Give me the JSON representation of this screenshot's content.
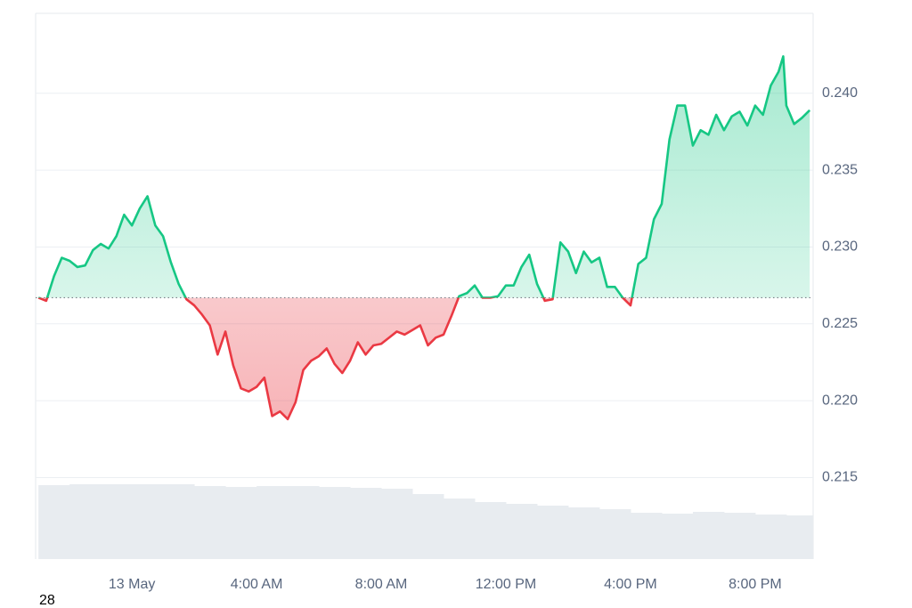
{
  "chart_data": {
    "type": "price-line",
    "footer_text": "28",
    "reference_value": 0.2267,
    "up_color": "#16c784",
    "down_color": "#ea3943",
    "volume_color": "#e8ecf0",
    "grid": true,
    "xlim": [
      -3.09,
      21.86
    ],
    "ylim": [
      0.2097,
      0.2452
    ],
    "xticks": [
      {
        "value": 0,
        "label": "13 May"
      },
      {
        "value": 4,
        "label": "4:00 AM"
      },
      {
        "value": 8,
        "label": "8:00 AM"
      },
      {
        "value": 12,
        "label": "12:00 PM"
      },
      {
        "value": 16,
        "label": "4:00 PM"
      },
      {
        "value": 20,
        "label": "8:00 PM"
      }
    ],
    "yticks": [
      {
        "value": 0.215,
        "label": "0.215"
      },
      {
        "value": 0.22,
        "label": "0.220"
      },
      {
        "value": 0.225,
        "label": "0.225"
      },
      {
        "value": 0.23,
        "label": "0.230"
      },
      {
        "value": 0.235,
        "label": "0.235"
      },
      {
        "value": 0.24,
        "label": "0.240"
      }
    ],
    "x": [
      -3,
      -2.75,
      -2.5,
      -2.25,
      -2,
      -1.75,
      -1.5,
      -1.25,
      -1,
      -0.75,
      -0.5,
      -0.25,
      0,
      0.25,
      0.5,
      0.75,
      1,
      1.25,
      1.5,
      1.75,
      2,
      2.25,
      2.5,
      2.75,
      3,
      3.25,
      3.5,
      3.75,
      4,
      4.25,
      4.5,
      4.75,
      5,
      5.25,
      5.5,
      5.75,
      6,
      6.25,
      6.5,
      6.75,
      7,
      7.25,
      7.5,
      7.75,
      8,
      8.25,
      8.5,
      8.75,
      9,
      9.25,
      9.5,
      9.75,
      10,
      10.25,
      10.5,
      10.75,
      11,
      11.25,
      11.5,
      11.75,
      12,
      12.25,
      12.5,
      12.75,
      13,
      13.25,
      13.5,
      13.75,
      14,
      14.25,
      14.5,
      14.75,
      15,
      15.25,
      15.5,
      15.75,
      16,
      16.25,
      16.5,
      16.75,
      17,
      17.25,
      17.5,
      17.75,
      18,
      18.25,
      18.5,
      18.75,
      19,
      19.25,
      19.5,
      19.75,
      20,
      20.25,
      20.5,
      20.75,
      20.9,
      21,
      21.25,
      21.5,
      21.75
    ],
    "values": [
      0.2267,
      0.2265,
      0.2281,
      0.2293,
      0.2291,
      0.2287,
      0.2288,
      0.2298,
      0.2302,
      0.2299,
      0.2307,
      0.2321,
      0.2314,
      0.2325,
      0.2333,
      0.2314,
      0.2307,
      0.229,
      0.2276,
      0.2266,
      0.2262,
      0.2256,
      0.2249,
      0.223,
      0.2245,
      0.2223,
      0.2208,
      0.2206,
      0.2209,
      0.2215,
      0.219,
      0.2193,
      0.2188,
      0.2199,
      0.222,
      0.2226,
      0.2229,
      0.2234,
      0.2224,
      0.2218,
      0.2226,
      0.2238,
      0.223,
      0.2236,
      0.2237,
      0.2241,
      0.2245,
      0.2243,
      0.2246,
      0.2249,
      0.2236,
      0.2241,
      0.2243,
      0.2255,
      0.2268,
      0.227,
      0.2275,
      0.2267,
      0.2267,
      0.2268,
      0.2275,
      0.2275,
      0.2287,
      0.2295,
      0.2276,
      0.2265,
      0.2266,
      0.2303,
      0.2297,
      0.2283,
      0.2297,
      0.229,
      0.2293,
      0.2274,
      0.2274,
      0.2267,
      0.2262,
      0.2289,
      0.2293,
      0.2318,
      0.2328,
      0.237,
      0.2392,
      0.2392,
      0.2366,
      0.2376,
      0.2373,
      0.2386,
      0.2376,
      0.2385,
      0.2388,
      0.2379,
      0.2392,
      0.2386,
      0.2405,
      0.2414,
      0.2424,
      0.2392,
      0.238,
      0.2384,
      0.2389
    ],
    "volume": {
      "lim": [
        0,
        100
      ],
      "x": [
        -3,
        -2,
        -1,
        0,
        1,
        2,
        3,
        4,
        5,
        6,
        7,
        8,
        9,
        10,
        11,
        12,
        13,
        14,
        15,
        16,
        17,
        18,
        19,
        20,
        21
      ],
      "values": [
        83,
        84,
        84,
        84,
        84,
        82,
        81,
        82,
        82,
        81,
        80,
        79,
        73,
        68,
        64,
        62,
        60,
        58,
        56,
        52,
        51,
        53,
        52,
        50,
        49
      ]
    }
  }
}
